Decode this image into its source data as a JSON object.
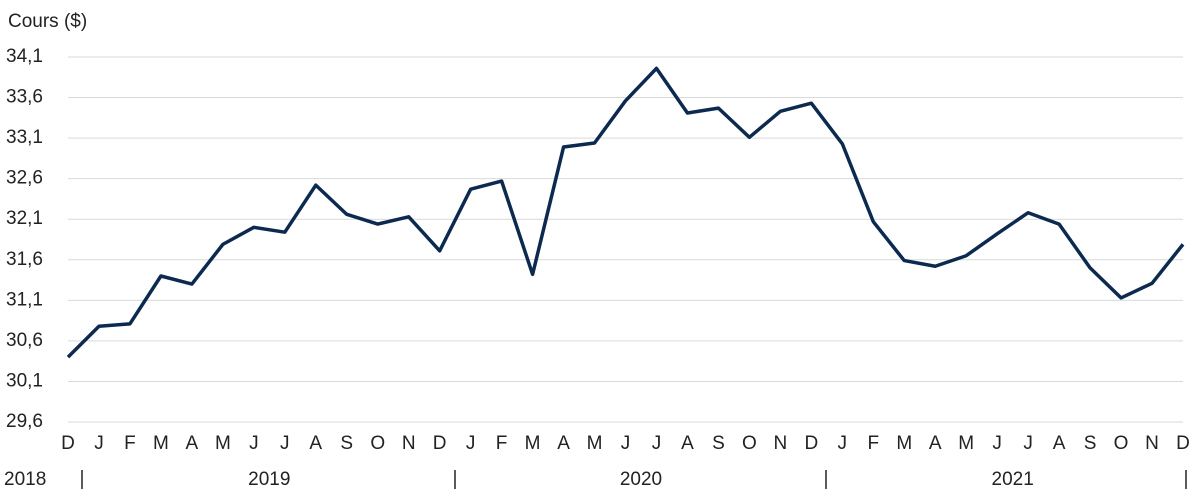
{
  "chart_data": {
    "type": "line",
    "y_axis_label": "Cours ($)",
    "categories": [
      "D",
      "J",
      "F",
      "M",
      "A",
      "M",
      "J",
      "J",
      "A",
      "S",
      "O",
      "N",
      "D",
      "J",
      "F",
      "M",
      "A",
      "M",
      "J",
      "J",
      "A",
      "S",
      "O",
      "N",
      "D",
      "J",
      "F",
      "M",
      "A",
      "M",
      "J",
      "J",
      "A",
      "S",
      "O",
      "N",
      "D"
    ],
    "year_labels": [
      "2018",
      "2019",
      "2020",
      "2021"
    ],
    "series": [
      {
        "color": "#0c2a50",
        "values": [
          30.4,
          30.78,
          30.81,
          31.4,
          31.3,
          31.79,
          32.0,
          31.94,
          32.52,
          32.16,
          32.04,
          32.13,
          31.71,
          32.47,
          32.57,
          31.42,
          32.99,
          33.04,
          33.56,
          33.96,
          33.41,
          33.47,
          33.11,
          33.43,
          33.53,
          33.03,
          32.07,
          31.59,
          31.52,
          31.65,
          31.92,
          32.18,
          32.04,
          31.5,
          31.13,
          31.31,
          31.79
        ]
      }
    ],
    "ylim": [
      29.6,
      34.1
    ],
    "yticks": [
      {
        "value": 29.6,
        "label": "29,6"
      },
      {
        "value": 30.1,
        "label": "30,1"
      },
      {
        "value": 30.6,
        "label": "30,6"
      },
      {
        "value": 31.1,
        "label": "31,1"
      },
      {
        "value": 31.6,
        "label": "31,6"
      },
      {
        "value": 32.1,
        "label": "32,1"
      },
      {
        "value": 32.6,
        "label": "32,6"
      },
      {
        "value": 33.1,
        "label": "33,1"
      },
      {
        "value": 33.6,
        "label": "33,6"
      },
      {
        "value": 34.1,
        "label": "34,1"
      }
    ],
    "grid": true
  }
}
